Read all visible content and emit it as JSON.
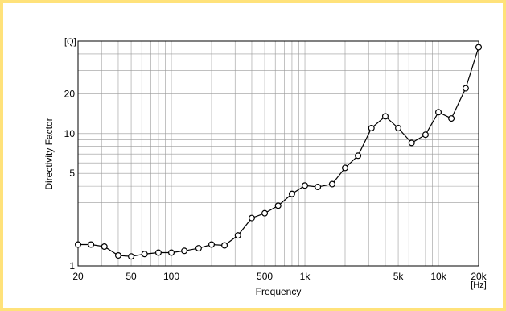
{
  "chart_data": {
    "type": "line",
    "xlabel": "Frequency",
    "ylabel": "Directivity Factor",
    "x_unit": "[Hz]",
    "y_unit": "[Q]",
    "x_scale": "log",
    "y_scale": "log",
    "xlim": [
      20,
      20000
    ],
    "ylim": [
      1,
      50
    ],
    "grid": true,
    "x_tick_labels": [
      {
        "value": 20,
        "label": "20"
      },
      {
        "value": 50,
        "label": "50"
      },
      {
        "value": 100,
        "label": "100"
      },
      {
        "value": 500,
        "label": "500"
      },
      {
        "value": 1000,
        "label": "1k"
      },
      {
        "value": 5000,
        "label": "5k"
      },
      {
        "value": 10000,
        "label": "10k"
      },
      {
        "value": 20000,
        "label": "20k"
      }
    ],
    "y_tick_labels": [
      {
        "value": 1,
        "label": "1"
      },
      {
        "value": 5,
        "label": "5"
      },
      {
        "value": 10,
        "label": "10"
      },
      {
        "value": 20,
        "label": "20"
      }
    ],
    "series": [
      {
        "marker": "circle",
        "color": "#000000",
        "x": [
          20,
          25,
          31.5,
          40,
          50,
          63,
          80,
          100,
          125,
          160,
          200,
          250,
          315,
          400,
          500,
          630,
          800,
          1000,
          1250,
          1600,
          2000,
          2500,
          3150,
          4000,
          5000,
          6300,
          8000,
          10000,
          12500,
          16000,
          20000
        ],
        "y": [
          1.45,
          1.45,
          1.4,
          1.2,
          1.18,
          1.23,
          1.26,
          1.26,
          1.3,
          1.36,
          1.45,
          1.43,
          1.7,
          2.3,
          2.5,
          2.85,
          3.5,
          4.05,
          3.95,
          4.15,
          5.5,
          6.8,
          11,
          13.5,
          11,
          8.5,
          9.8,
          14.5,
          13,
          22,
          45
        ]
      }
    ]
  }
}
